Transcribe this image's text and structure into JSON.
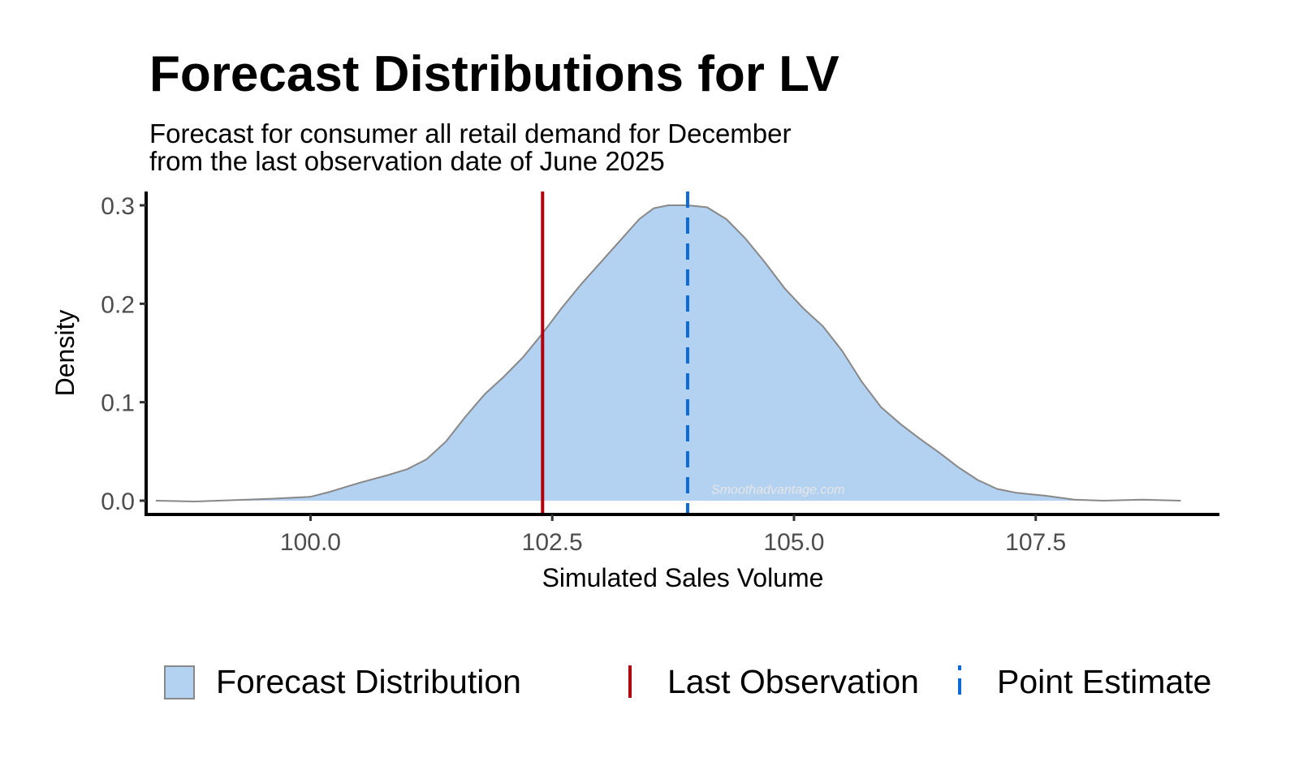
{
  "chart_data": {
    "type": "area",
    "title": "Forecast Distributions for LV",
    "subtitle_lines": [
      "Forecast for consumer all retail demand for December",
      "from the last observation date of June 2025"
    ],
    "xlabel": "Simulated Sales Volume",
    "ylabel": "Density",
    "xlim": [
      98.3,
      109.4
    ],
    "ylim": [
      -0.014,
      0.314
    ],
    "x_ticks": [
      100.0,
      102.5,
      105.0,
      107.5
    ],
    "x_tick_labels": [
      "100.0",
      "102.5",
      "105.0",
      "107.5"
    ],
    "y_ticks": [
      0.0,
      0.1,
      0.2,
      0.3
    ],
    "y_tick_labels": [
      "0.0",
      "0.1",
      "0.2",
      "0.3"
    ],
    "grid": false,
    "legend_position": "bottom",
    "series": [
      {
        "name": "Forecast Distribution",
        "kind": "density",
        "fill": "#b3d1f0",
        "stroke": "#888888",
        "x": [
          98.4,
          98.8,
          99.2,
          99.6,
          100.0,
          100.2,
          100.5,
          100.8,
          101.0,
          101.2,
          101.4,
          101.6,
          101.8,
          102.0,
          102.2,
          102.4,
          102.6,
          102.8,
          103.0,
          103.2,
          103.4,
          103.55,
          103.7,
          103.9,
          104.1,
          104.3,
          104.5,
          104.7,
          104.9,
          105.1,
          105.3,
          105.5,
          105.7,
          105.9,
          106.1,
          106.3,
          106.5,
          106.7,
          106.9,
          107.1,
          107.3,
          107.6,
          107.9,
          108.2,
          108.6,
          109.0
        ],
        "y": [
          0.0,
          -0.0008,
          0.0005,
          0.002,
          0.004,
          0.009,
          0.018,
          0.026,
          0.032,
          0.042,
          0.06,
          0.085,
          0.108,
          0.126,
          0.146,
          0.17,
          0.196,
          0.22,
          0.242,
          0.264,
          0.286,
          0.297,
          0.3,
          0.3,
          0.298,
          0.286,
          0.266,
          0.242,
          0.216,
          0.195,
          0.177,
          0.152,
          0.121,
          0.095,
          0.078,
          0.063,
          0.049,
          0.034,
          0.021,
          0.012,
          0.008,
          0.005,
          0.001,
          0.0,
          0.001,
          0.0
        ]
      }
    ],
    "vlines": [
      {
        "name": "Last Observation",
        "x": 102.4,
        "color": "#b0000d",
        "style": "solid"
      },
      {
        "name": "Point Estimate",
        "x": 103.9,
        "color": "#0e6bd6",
        "style": "dashed"
      }
    ],
    "watermark": "Smoothadvantage.com"
  }
}
